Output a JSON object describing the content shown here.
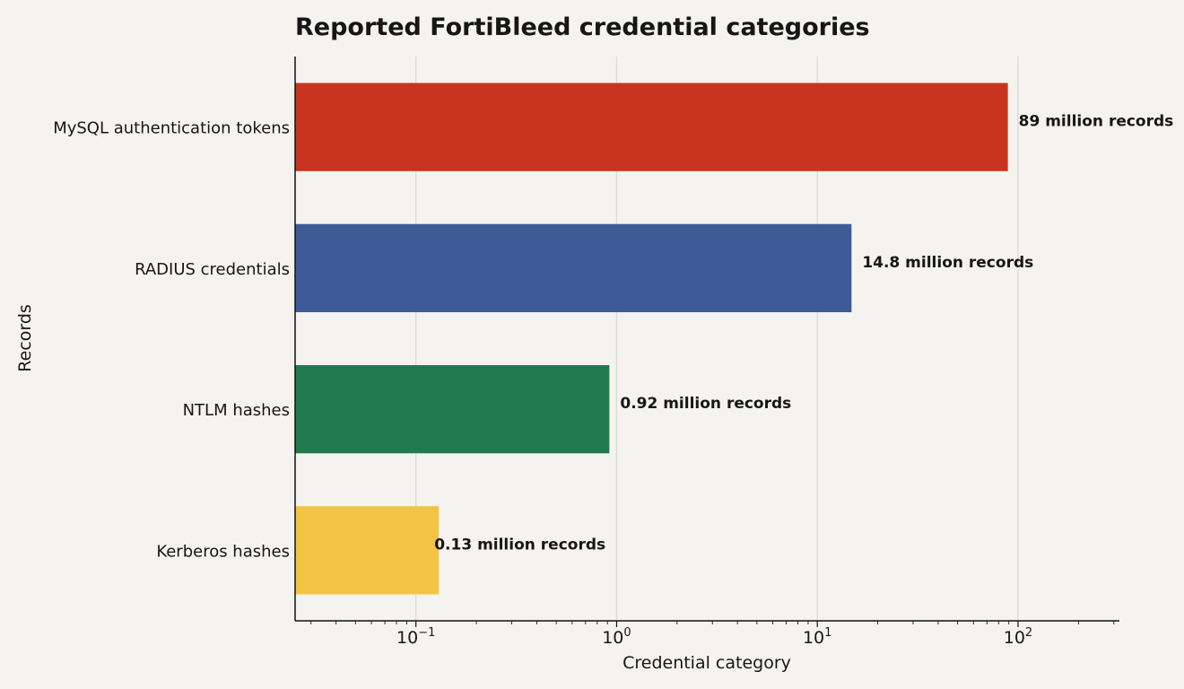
{
  "chart_data": {
    "type": "bar",
    "orientation": "horizontal",
    "title": "Reported FortiBleed credential categories",
    "xlabel": "Credential category",
    "ylabel": "Records",
    "x_scale": "log",
    "xlim": [
      0.025,
      320
    ],
    "x_ticks": [
      {
        "value": 0.1,
        "base": "10",
        "exp": "−1"
      },
      {
        "value": 1,
        "base": "10",
        "exp": "0"
      },
      {
        "value": 10,
        "base": "10",
        "exp": "1"
      },
      {
        "value": 100,
        "base": "10",
        "exp": "2"
      }
    ],
    "grid": "vertical major gridlines",
    "categories": [
      "MySQL authentication tokens",
      "RADIUS credentials",
      "NTLM hashes",
      "Kerberos hashes"
    ],
    "values": [
      89,
      14.8,
      0.92,
      0.13
    ],
    "labels": [
      "89 million records",
      "14.8 million records",
      "0.92 million records",
      "0.13 million records"
    ],
    "colors": [
      "#c93420",
      "#3d5b96",
      "#217a4e",
      "#f3c443"
    ],
    "background": "#f4f3f0"
  }
}
